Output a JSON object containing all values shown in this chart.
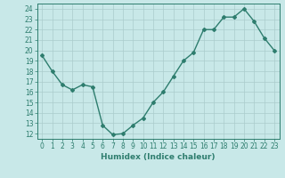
{
  "x": [
    0,
    1,
    2,
    3,
    4,
    5,
    6,
    7,
    8,
    9,
    10,
    11,
    12,
    13,
    14,
    15,
    16,
    17,
    18,
    19,
    20,
    21,
    22,
    23
  ],
  "y": [
    19.5,
    18.0,
    16.7,
    16.2,
    16.7,
    16.5,
    12.8,
    11.9,
    12.0,
    12.8,
    13.5,
    15.0,
    16.0,
    17.5,
    19.0,
    19.8,
    22.0,
    22.0,
    23.2,
    23.2,
    24.0,
    22.8,
    21.2,
    20.0
  ],
  "line_color": "#2e7d6e",
  "marker": "D",
  "marker_size": 2.0,
  "bg_color": "#c8e8e8",
  "grid_color": "#aacccc",
  "xlabel": "Humidex (Indice chaleur)",
  "xlim": [
    -0.5,
    23.5
  ],
  "ylim": [
    11.5,
    24.5
  ],
  "yticks": [
    12,
    13,
    14,
    15,
    16,
    17,
    18,
    19,
    20,
    21,
    22,
    23,
    24
  ],
  "xticks": [
    0,
    1,
    2,
    3,
    4,
    5,
    6,
    7,
    8,
    9,
    10,
    11,
    12,
    13,
    14,
    15,
    16,
    17,
    18,
    19,
    20,
    21,
    22,
    23
  ],
  "xtick_labels": [
    "0",
    "1",
    "2",
    "3",
    "4",
    "5",
    "6",
    "7",
    "8",
    "9",
    "10",
    "11",
    "12",
    "13",
    "14",
    "15",
    "16",
    "17",
    "18",
    "19",
    "20",
    "21",
    "22",
    "23"
  ],
  "tick_color": "#2e7d6e",
  "label_fontsize": 6.5,
  "tick_fontsize": 5.5,
  "linewidth": 1.0
}
